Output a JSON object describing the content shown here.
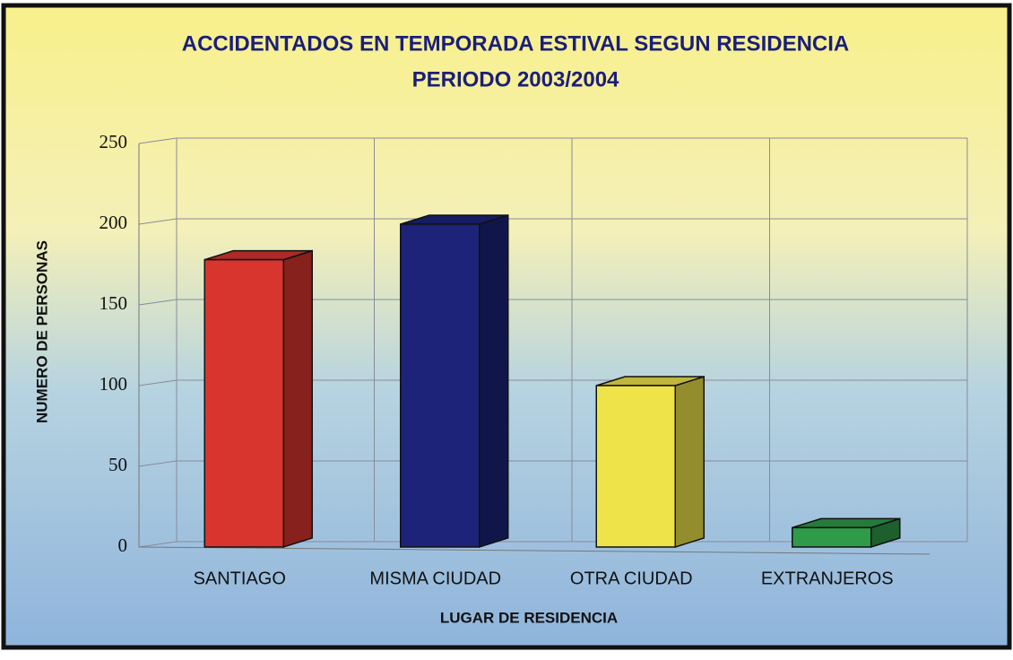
{
  "chart_data": {
    "type": "bar",
    "title": "ACCIDENTADOS EN TEMPORADA ESTIVAL SEGUN RESIDENCIA",
    "subtitle": "PERIODO 2003/2004",
    "x_label": "LUGAR DE RESIDENCIA",
    "y_label": "NUMERO DE PERSONAS",
    "categories": [
      "SANTIAGO",
      "MISMA CIUDAD",
      "OTRA CIUDAD",
      "EXTRANJEROS"
    ],
    "values": [
      178,
      200,
      100,
      12
    ],
    "colors": [
      "#d8352f",
      "#1c2378",
      "#efe34a",
      "#2f9a48"
    ],
    "ylim": [
      0,
      250
    ],
    "yticks": [
      0,
      50,
      100,
      150,
      200,
      250
    ],
    "grid": true
  }
}
